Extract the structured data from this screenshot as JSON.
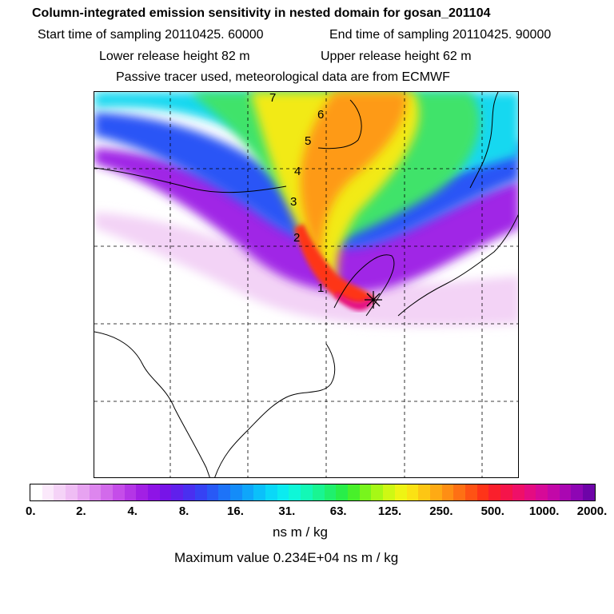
{
  "header": {
    "title": "Column-integrated emission sensitivity in nested domain for gosan_201104",
    "start_label": "Start time of sampling 20110425. 60000",
    "end_label": "End time of sampling 20110425. 90000",
    "lower_label": "Lower release height   82 m",
    "upper_label": "Upper release height   62 m",
    "tracer_label": "Passive tracer used, meteorological data are from ECMWF"
  },
  "map": {
    "day_labels": [
      "1",
      "2",
      "3",
      "4",
      "5",
      "6",
      "7"
    ],
    "release_marker": "release-site-star",
    "grid": "dashed"
  },
  "colorbar": {
    "tick_labels": [
      "0.",
      "2.",
      "4.",
      "8.",
      "16.",
      "31.",
      "63.",
      "125.",
      "250.",
      "500.",
      "1000.",
      "2000."
    ],
    "colors": [
      "#ffffff",
      "#fbe9fb",
      "#f5d3f7",
      "#efbdf4",
      "#e7a3f1",
      "#dd86ee",
      "#d26aeb",
      "#c54de9",
      "#b436e6",
      "#a220e4",
      "#8e14e6",
      "#7714e8",
      "#6020ec",
      "#4a2ff0",
      "#3642f4",
      "#2859f6",
      "#1d73f8",
      "#148cf9",
      "#0fa6fa",
      "#0bc0fa",
      "#0ad8f8",
      "#0bebf0",
      "#0ff7d8",
      "#13f8b6",
      "#19f592",
      "#1ff06d",
      "#28ee49",
      "#48f02a",
      "#78f51c",
      "#a6f816",
      "#cef814",
      "#eef414",
      "#fbe214",
      "#fdc614",
      "#feaa14",
      "#fe8e14",
      "#fe7014",
      "#fe5214",
      "#fe3418",
      "#fa1f2c",
      "#f5144a",
      "#ef0f68",
      "#e40c82",
      "#d60a98",
      "#c208a8",
      "#aa07b2",
      "#8e06b4",
      "#6e04a8"
    ],
    "units": "ns m / kg",
    "maximum_label": "Maximum value  0.234E+04 ns m / kg"
  }
}
